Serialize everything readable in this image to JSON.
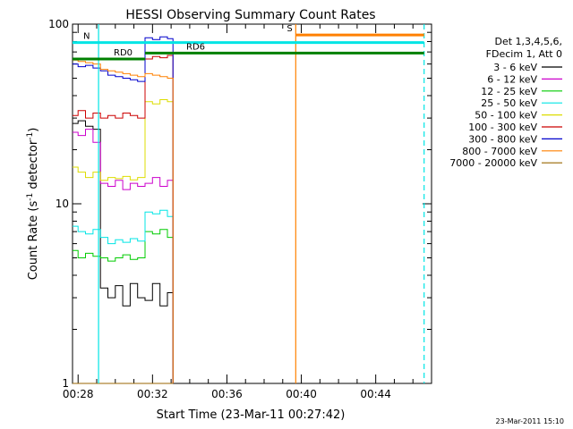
{
  "chart_data": {
    "type": "line",
    "title": "HESSI Observing Summary Count Rates",
    "xlabel": "Start Time (23-Mar-11 00:27:42)",
    "ylabel_main": "Count Rate (s",
    "ylabel_sup1": "-1",
    "ylabel_mid": " detector",
    "ylabel_sup2": "-1",
    "ylabel_end": ")",
    "yscale": "log",
    "ylim": [
      1,
      100
    ],
    "xlim_minutes": [
      27.7,
      47.0
    ],
    "x_ticks": [
      {
        "label": "00:28",
        "min": 28
      },
      {
        "label": "00:32",
        "min": 32
      },
      {
        "label": "00:36",
        "min": 36
      },
      {
        "label": "00:40",
        "min": 40
      },
      {
        "label": "00:44",
        "min": 44
      }
    ],
    "y_ticks": [
      {
        "label": "1",
        "value": 1
      },
      {
        "label": "10",
        "value": 10
      },
      {
        "label": "100",
        "value": 100
      }
    ],
    "legend_header": [
      "Det 1,3,4,5,6,",
      "FDecim 1, Att 0"
    ],
    "series": [
      {
        "name": "3 - 6 keV",
        "color": "#000000",
        "x": [
          27.7,
          28.0,
          28.4,
          28.8,
          29.2,
          29.6,
          30.0,
          30.4,
          30.8,
          31.2,
          31.6,
          32.0,
          32.4,
          32.8,
          33.1
        ],
        "values": [
          28,
          29,
          27,
          26,
          3.4,
          3.0,
          3.5,
          2.7,
          3.6,
          3.0,
          2.9,
          3.6,
          2.7,
          3.2,
          2.0
        ]
      },
      {
        "name": "6 - 12 keV",
        "color": "#cc00cc",
        "x": [
          27.7,
          28.0,
          28.4,
          28.8,
          29.2,
          29.6,
          30.0,
          30.4,
          30.8,
          31.2,
          31.6,
          32.0,
          32.4,
          32.8,
          33.1
        ],
        "values": [
          25,
          24,
          26,
          22,
          13,
          12.5,
          13.5,
          12,
          13,
          12.5,
          13,
          14,
          12.5,
          13.5,
          12
        ]
      },
      {
        "name": "12 - 25 keV",
        "color": "#00cc00",
        "x": [
          27.7,
          28.0,
          28.4,
          28.8,
          29.2,
          29.6,
          30.0,
          30.4,
          30.8,
          31.2,
          31.6,
          32.0,
          32.4,
          32.8,
          33.1
        ],
        "values": [
          5.5,
          5.0,
          5.3,
          5.1,
          5.0,
          4.8,
          5.0,
          5.2,
          4.9,
          5.0,
          7.0,
          6.8,
          7.2,
          6.5,
          6.0
        ]
      },
      {
        "name": "25 - 50 keV",
        "color": "#00e5e5",
        "x": [
          27.7,
          28.0,
          28.4,
          28.8,
          29.2,
          29.6,
          30.0,
          30.4,
          30.8,
          31.2,
          31.6,
          32.0,
          32.4,
          32.8,
          33.1
        ],
        "values": [
          7.5,
          7.0,
          6.8,
          7.2,
          6.5,
          6.0,
          6.3,
          6.1,
          6.4,
          6.2,
          9.0,
          8.8,
          9.2,
          8.5,
          8.0
        ]
      },
      {
        "name": "50 - 100 keV",
        "color": "#dddd00",
        "x": [
          27.7,
          28.0,
          28.4,
          28.8,
          29.2,
          29.6,
          30.0,
          30.4,
          30.8,
          31.2,
          31.6,
          32.0,
          32.4,
          32.8,
          33.1
        ],
        "values": [
          16,
          15,
          14,
          15,
          13.5,
          14,
          13.8,
          14.2,
          13.6,
          14,
          37,
          36,
          38,
          37,
          36
        ]
      },
      {
        "name": "100 - 300 keV",
        "color": "#cc0000",
        "x": [
          27.7,
          28.0,
          28.4,
          28.8,
          29.2,
          29.6,
          30.0,
          30.4,
          30.8,
          31.2,
          31.6,
          32.0,
          32.4,
          32.8,
          33.1
        ],
        "values": [
          31,
          33,
          30,
          32,
          30,
          31,
          30,
          32,
          31,
          30,
          64,
          66,
          65,
          67,
          64
        ]
      },
      {
        "name": "300 - 800 keV",
        "color": "#0000cc",
        "x": [
          27.7,
          28.0,
          28.4,
          28.8,
          29.2,
          29.6,
          30.0,
          30.4,
          30.8,
          31.2,
          31.6,
          32.0,
          32.4,
          32.8,
          33.1
        ],
        "values": [
          60,
          58,
          59,
          57,
          55,
          52,
          51,
          50,
          49,
          48,
          84,
          82,
          85,
          83,
          80
        ]
      },
      {
        "name": "800 - 7000 keV",
        "color": "#ff8000",
        "x": [
          27.7,
          28.0,
          28.4,
          28.8,
          29.2,
          29.6,
          30.0,
          30.4,
          30.8,
          31.2,
          31.6,
          32.0,
          32.4,
          32.8,
          33.1
        ],
        "values": [
          63,
          62,
          61,
          60,
          56,
          55,
          54,
          53,
          52,
          51,
          53,
          52,
          51,
          50,
          49
        ]
      },
      {
        "name": "7000 - 20000 keV",
        "color": "#996600",
        "x": [
          27.7,
          33.1
        ],
        "values": [
          1,
          1
        ]
      }
    ],
    "bars": [
      {
        "label": "N",
        "color": "#00e5e5",
        "x0": 27.7,
        "x1": 46.6,
        "y": 79
      },
      {
        "label": "RD0",
        "color": "#008000",
        "x0": 27.7,
        "x1": 31.6,
        "y": 64
      },
      {
        "label": "RD6",
        "color": "#008000",
        "x0": 31.6,
        "x1": 46.6,
        "y": 69
      },
      {
        "label": "S",
        "color": "#ff8000",
        "x0": 39.7,
        "x1": 46.6,
        "y": 87
      }
    ],
    "vlines": [
      {
        "x": 29.1,
        "color": "#00e5e5",
        "style": "solid"
      },
      {
        "x": 39.7,
        "color": "#ff8000",
        "style": "solid"
      },
      {
        "x": 46.6,
        "color": "#00e5e5",
        "style": "dashed"
      }
    ]
  },
  "timestamp": "23-Mar-2011 15:10"
}
